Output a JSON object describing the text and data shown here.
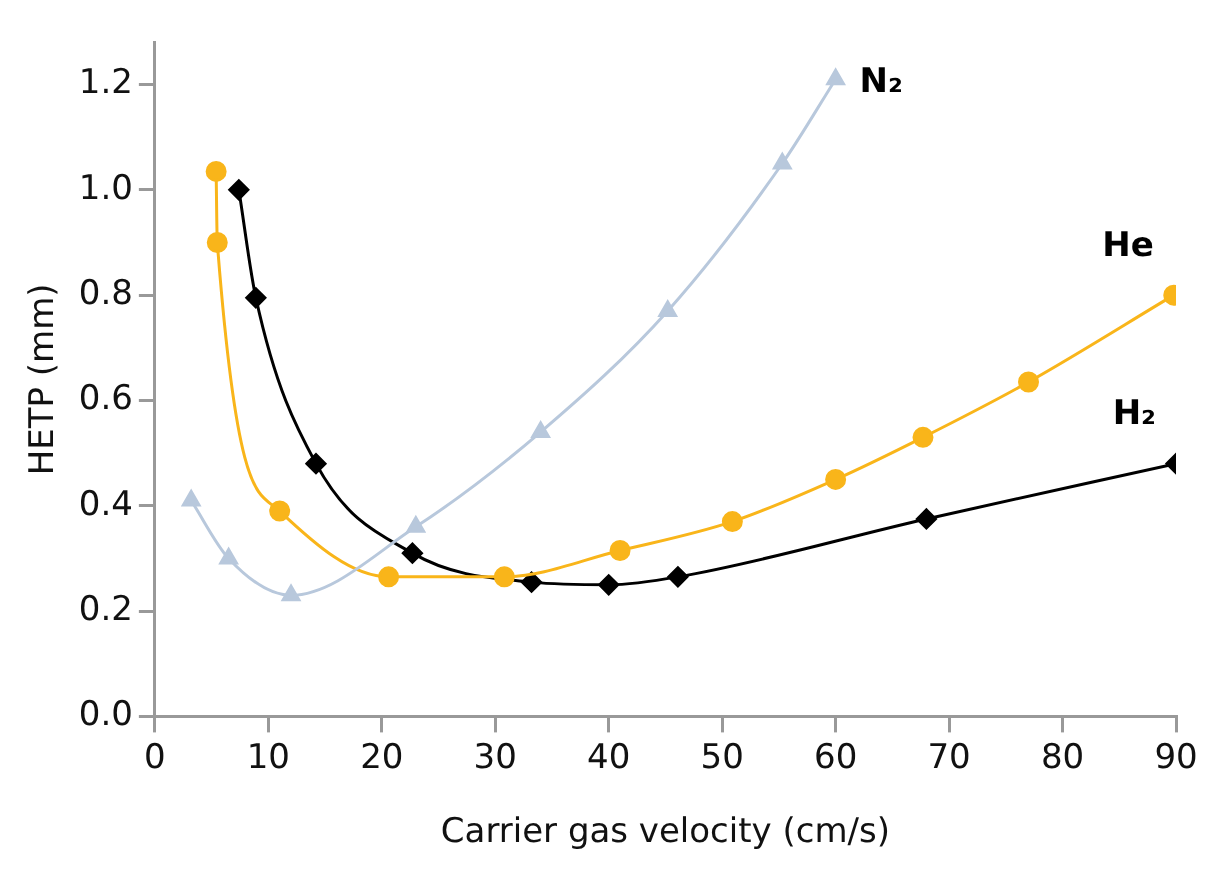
{
  "chart_data": {
    "type": "line",
    "xlabel": "Carrier gas velocity (cm/s)",
    "ylabel": "HETP (mm)",
    "xlim": [
      0,
      90
    ],
    "xticks": [
      0,
      10,
      20,
      30,
      40,
      50,
      60,
      70,
      80,
      90
    ],
    "ylim": [
      0,
      1.28
    ],
    "yticks": [
      {
        "value": 0,
        "label": "0.0"
      },
      {
        "value": 0.2,
        "label": "0.2"
      },
      {
        "value": 0.4,
        "label": "0.4"
      },
      {
        "value": 0.6,
        "label": "0.6"
      },
      {
        "value": 0.8,
        "label": "0.8"
      },
      {
        "value": 1,
        "label": "1.0"
      },
      {
        "value": 1.2,
        "label": "1.2"
      }
    ],
    "grid": false,
    "legend": false,
    "series": [
      {
        "name": "N₂",
        "color": "#b8c8dc",
        "marker": "triangle",
        "x": [
          3.2,
          6.5,
          12,
          23,
          34,
          45.2,
          55.3,
          60
        ],
        "values": [
          0.41,
          0.3,
          0.23,
          0.36,
          0.54,
          0.77,
          1.05,
          1.21
        ]
      },
      {
        "name": "He",
        "color": "#f9b51a",
        "marker": "circle",
        "x": [
          5.4,
          5.5,
          11,
          20.6,
          30.8,
          41,
          50.9,
          60,
          67.7,
          77,
          89.8
        ],
        "values": [
          1.035,
          0.9,
          0.39,
          0.265,
          0.265,
          0.315,
          0.37,
          0.45,
          0.53,
          0.635,
          0.8
        ]
      },
      {
        "name": "H₂",
        "color": "#000000",
        "marker": "diamond",
        "x": [
          7.4,
          8.9,
          14.2,
          22.7,
          33.2,
          40,
          46.1,
          68,
          90
        ],
        "values": [
          1.0,
          0.795,
          0.48,
          0.31,
          0.255,
          0.25,
          0.265,
          0.375,
          0.48
        ]
      }
    ]
  }
}
